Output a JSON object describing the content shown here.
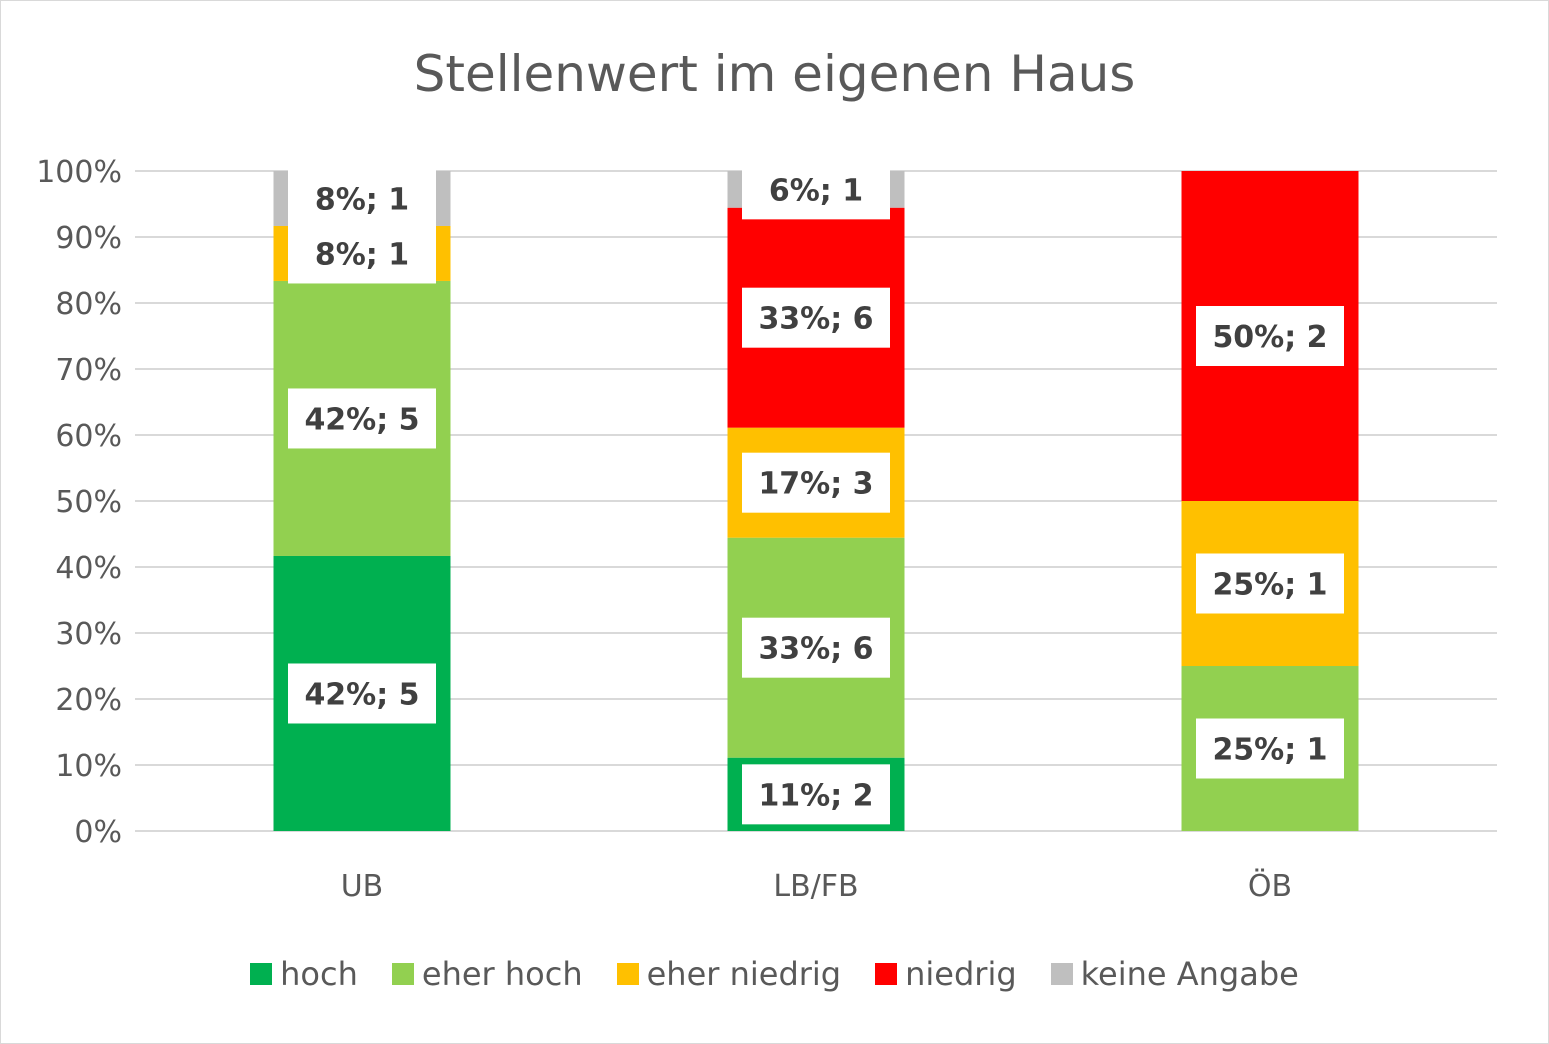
{
  "chart_data": {
    "type": "bar",
    "stacked": true,
    "title": "Stellenwert im eigenen Haus",
    "xlabel": "",
    "ylabel": "",
    "ylim": [
      0,
      100
    ],
    "y_ticks": [
      "0%",
      "10%",
      "20%",
      "30%",
      "40%",
      "50%",
      "60%",
      "70%",
      "80%",
      "90%",
      "100%"
    ],
    "grid": true,
    "legend_position": "bottom",
    "categories": [
      "UB",
      "LB/FB",
      "ÖB"
    ],
    "series": [
      {
        "name": "hoch",
        "color": "#00b050",
        "values": [
          41.67,
          11.11,
          0
        ],
        "counts": [
          5,
          2,
          0
        ],
        "labels": [
          "42%; 5",
          "11%; 2",
          ""
        ]
      },
      {
        "name": "eher hoch",
        "color": "#92d050",
        "values": [
          41.67,
          33.33,
          25
        ],
        "counts": [
          5,
          6,
          1
        ],
        "labels": [
          "42%; 5",
          "33%; 6",
          "25%; 1"
        ]
      },
      {
        "name": "eher niedrig",
        "color": "#ffc000",
        "values": [
          8.33,
          16.67,
          25
        ],
        "counts": [
          1,
          3,
          1
        ],
        "labels": [
          "8%; 1",
          "17%; 3",
          "25%; 1"
        ]
      },
      {
        "name": "niedrig",
        "color": "#ff0000",
        "values": [
          0,
          33.33,
          50
        ],
        "counts": [
          0,
          6,
          2
        ],
        "labels": [
          "",
          "33%; 6",
          "50%; 2"
        ]
      },
      {
        "name": "keine Angabe",
        "color": "#bfbfbf",
        "values": [
          8.33,
          5.56,
          0
        ],
        "counts": [
          1,
          1,
          0
        ],
        "labels": [
          "8%; 1",
          "6%; 1",
          ""
        ]
      }
    ]
  }
}
